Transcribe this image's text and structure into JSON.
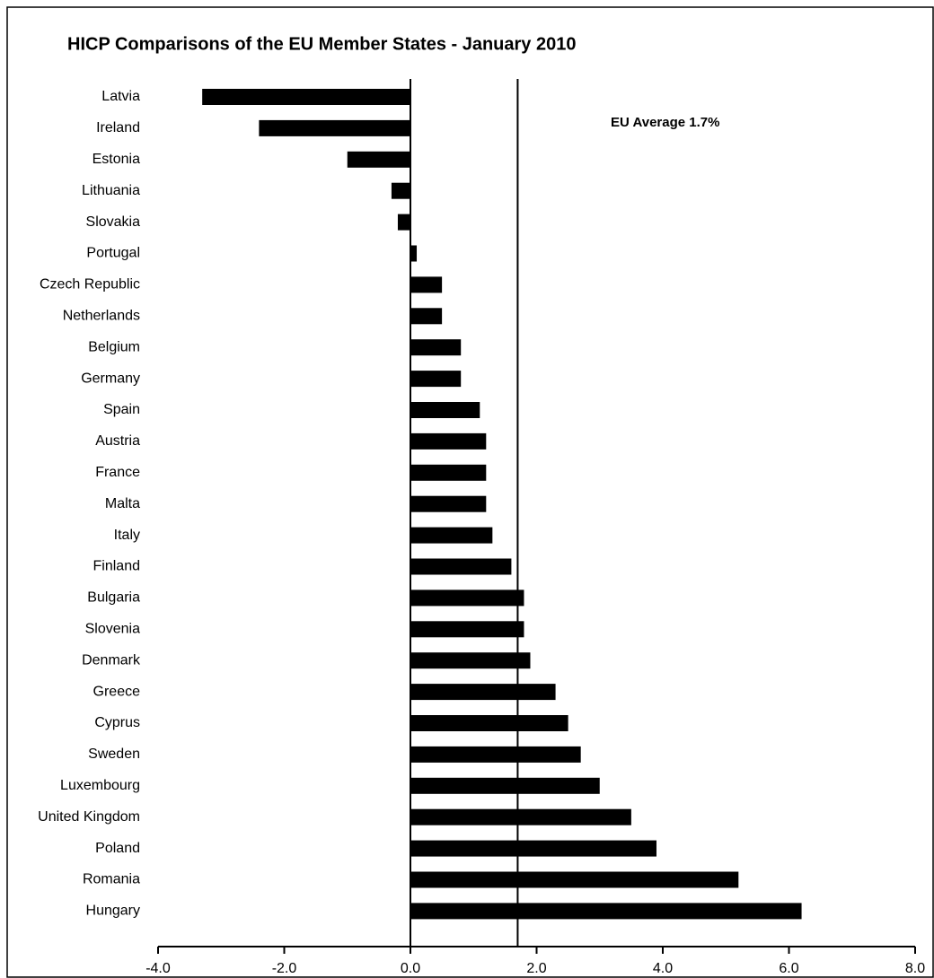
{
  "chart_data": {
    "type": "hbar",
    "title": "HICP Comparisons of the EU Member States -  January 2010",
    "annotation": "EU Average 1.7%",
    "reference_line": 1.7,
    "categories": [
      "Latvia",
      "Ireland",
      "Estonia",
      "Lithuania",
      "Slovakia",
      "Portugal",
      "Czech Republic",
      "Netherlands",
      "Belgium",
      "Germany",
      "Spain",
      "Austria",
      "France",
      "Malta",
      "Italy",
      "Finland",
      "Bulgaria",
      "Slovenia",
      "Denmark",
      "Greece",
      "Cyprus",
      "Sweden",
      "Luxembourg",
      "United Kingdom",
      "Poland",
      "Romania",
      "Hungary"
    ],
    "values": [
      -3.3,
      -2.4,
      -1.0,
      -0.3,
      -0.2,
      0.1,
      0.5,
      0.5,
      0.8,
      0.8,
      1.1,
      1.2,
      1.2,
      1.2,
      1.3,
      1.6,
      1.8,
      1.8,
      1.9,
      2.3,
      2.5,
      2.7,
      3.0,
      3.5,
      3.9,
      5.2,
      6.2
    ],
    "color": "#000000",
    "xlim": [
      -4,
      8
    ],
    "xticks": [
      {
        "value": -4,
        "label": "-4.0"
      },
      {
        "value": -2,
        "label": "-2.0"
      },
      {
        "value": 0,
        "label": "0.0"
      },
      {
        "value": 2,
        "label": "2.0"
      },
      {
        "value": 4,
        "label": "4.0"
      },
      {
        "value": 6,
        "label": "6.0"
      },
      {
        "value": 8,
        "label": "8.0"
      }
    ]
  }
}
